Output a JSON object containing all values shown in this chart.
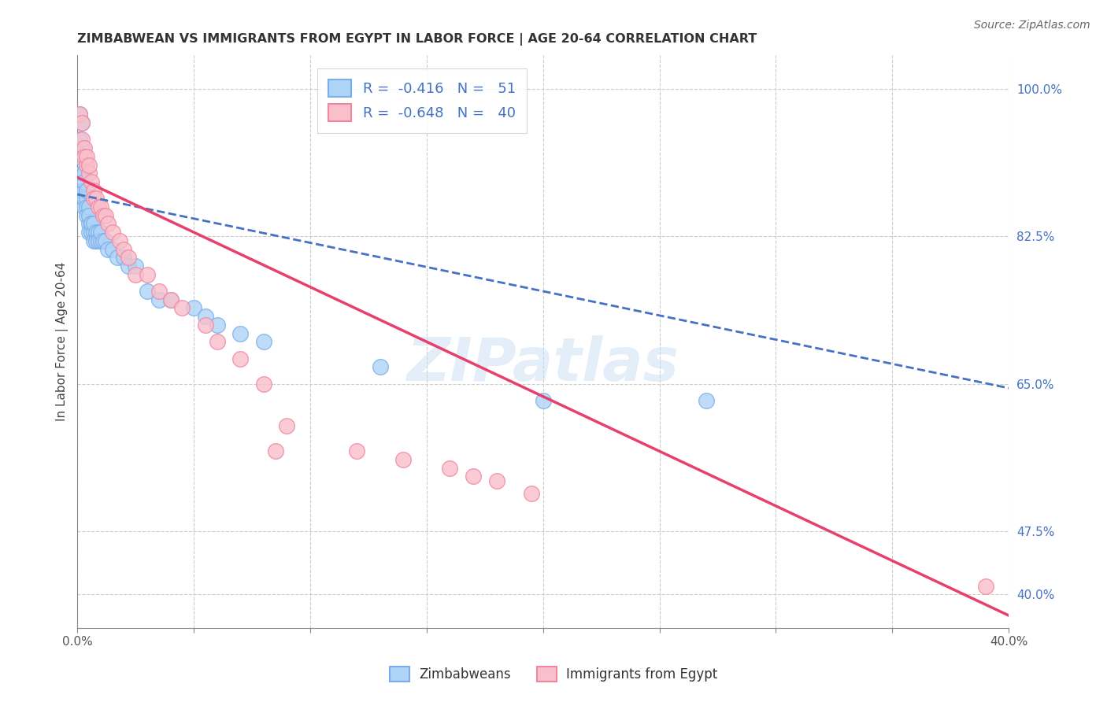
{
  "title": "ZIMBABWEAN VS IMMIGRANTS FROM EGYPT IN LABOR FORCE | AGE 20-64 CORRELATION CHART",
  "source": "Source: ZipAtlas.com",
  "ylabel": "In Labor Force | Age 20-64",
  "xlim": [
    0.0,
    0.4
  ],
  "ylim": [
    0.36,
    1.04
  ],
  "xtick_positions": [
    0.0,
    0.05,
    0.1,
    0.15,
    0.2,
    0.25,
    0.3,
    0.35,
    0.4
  ],
  "xtick_labels": [
    "0.0%",
    "",
    "",
    "",
    "",
    "",
    "",
    "",
    "40.0%"
  ],
  "ytick_vals_right": [
    1.0,
    0.825,
    0.65,
    0.475,
    0.4
  ],
  "ytick_labels_right": [
    "100.0%",
    "82.5%",
    "65.0%",
    "47.5%",
    "40.0%"
  ],
  "grid_color": "#cccccc",
  "background_color": "#ffffff",
  "blue_dot_face": "#aed4f7",
  "blue_dot_edge": "#7baee8",
  "pink_dot_face": "#f9bfcb",
  "pink_dot_edge": "#f087a0",
  "blue_line_color": "#4472c4",
  "pink_line_color": "#e8406c",
  "legend_text_color": "#4472c4",
  "legend_label_color": "#333333",
  "watermark_color": "#c8dff5",
  "legend_line1": "R =  -0.416   N =   51",
  "legend_line2": "R =  -0.648   N =   40",
  "legend_label_blue": "Zimbabweans",
  "legend_label_pink": "Immigrants from Egypt",
  "watermark": "ZIPatlas",
  "blue_line_x0": 0.0,
  "blue_line_x1": 0.4,
  "blue_line_y0": 0.875,
  "blue_line_y1": 0.645,
  "pink_line_x0": 0.0,
  "pink_line_x1": 0.4,
  "pink_line_y0": 0.895,
  "pink_line_y1": 0.375,
  "blue_x": [
    0.001,
    0.001,
    0.001,
    0.002,
    0.002,
    0.002,
    0.002,
    0.003,
    0.003,
    0.003,
    0.003,
    0.003,
    0.004,
    0.004,
    0.004,
    0.004,
    0.005,
    0.005,
    0.005,
    0.005,
    0.006,
    0.006,
    0.006,
    0.007,
    0.007,
    0.007,
    0.008,
    0.008,
    0.009,
    0.009,
    0.01,
    0.01,
    0.011,
    0.012,
    0.013,
    0.015,
    0.017,
    0.02,
    0.022,
    0.025,
    0.03,
    0.035,
    0.04,
    0.05,
    0.055,
    0.06,
    0.07,
    0.08,
    0.13,
    0.2,
    0.27
  ],
  "blue_y": [
    0.97,
    0.94,
    0.92,
    0.96,
    0.93,
    0.9,
    0.88,
    0.9,
    0.88,
    0.86,
    0.87,
    0.89,
    0.87,
    0.86,
    0.88,
    0.85,
    0.86,
    0.84,
    0.85,
    0.83,
    0.84,
    0.83,
    0.84,
    0.83,
    0.84,
    0.82,
    0.83,
    0.82,
    0.83,
    0.82,
    0.82,
    0.83,
    0.82,
    0.82,
    0.81,
    0.81,
    0.8,
    0.8,
    0.79,
    0.79,
    0.76,
    0.75,
    0.75,
    0.74,
    0.73,
    0.72,
    0.71,
    0.7,
    0.67,
    0.63,
    0.63
  ],
  "pink_x": [
    0.001,
    0.002,
    0.002,
    0.003,
    0.003,
    0.004,
    0.004,
    0.005,
    0.005,
    0.006,
    0.007,
    0.007,
    0.008,
    0.009,
    0.01,
    0.011,
    0.012,
    0.013,
    0.015,
    0.018,
    0.02,
    0.022,
    0.025,
    0.03,
    0.035,
    0.04,
    0.045,
    0.055,
    0.06,
    0.07,
    0.08,
    0.085,
    0.09,
    0.12,
    0.14,
    0.16,
    0.17,
    0.18,
    0.195,
    0.39
  ],
  "pink_y": [
    0.97,
    0.96,
    0.94,
    0.93,
    0.92,
    0.91,
    0.92,
    0.9,
    0.91,
    0.89,
    0.88,
    0.87,
    0.87,
    0.86,
    0.86,
    0.85,
    0.85,
    0.84,
    0.83,
    0.82,
    0.81,
    0.8,
    0.78,
    0.78,
    0.76,
    0.75,
    0.74,
    0.72,
    0.7,
    0.68,
    0.65,
    0.57,
    0.6,
    0.57,
    0.56,
    0.55,
    0.54,
    0.535,
    0.52,
    0.41
  ]
}
